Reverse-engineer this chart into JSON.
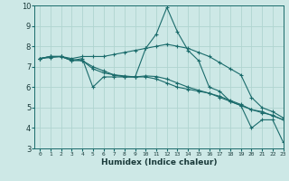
{
  "xlabel": "Humidex (Indice chaleur)",
  "ylabel": "",
  "background_color": "#cde8e6",
  "grid_color": "#b0d4d0",
  "line_color": "#1a6b6b",
  "xlim": [
    -0.5,
    23
  ],
  "ylim": [
    3,
    10
  ],
  "xticks": [
    0,
    1,
    2,
    3,
    4,
    5,
    6,
    7,
    8,
    9,
    10,
    11,
    12,
    13,
    14,
    15,
    16,
    17,
    18,
    19,
    20,
    21,
    22,
    23
  ],
  "yticks": [
    3,
    4,
    5,
    6,
    7,
    8,
    9,
    10
  ],
  "series": [
    [
      7.4,
      7.5,
      7.5,
      7.3,
      7.4,
      6.0,
      6.5,
      6.5,
      6.5,
      6.5,
      7.9,
      8.6,
      9.9,
      8.7,
      7.8,
      7.3,
      6.0,
      5.8,
      5.3,
      5.1,
      4.0,
      4.4,
      4.4,
      3.3
    ],
    [
      7.4,
      7.5,
      7.5,
      7.3,
      7.3,
      7.0,
      6.8,
      6.6,
      6.5,
      6.5,
      6.5,
      6.4,
      6.2,
      6.0,
      5.9,
      5.8,
      5.7,
      5.5,
      5.3,
      5.1,
      4.9,
      4.8,
      4.6,
      4.4
    ],
    [
      7.4,
      7.45,
      7.49,
      7.35,
      7.3,
      6.9,
      6.7,
      6.6,
      6.55,
      6.5,
      6.55,
      6.52,
      6.4,
      6.2,
      6.0,
      5.85,
      5.7,
      5.55,
      5.35,
      5.15,
      4.9,
      4.75,
      4.62,
      4.4
    ],
    [
      7.4,
      7.5,
      7.5,
      7.4,
      7.5,
      7.5,
      7.5,
      7.6,
      7.7,
      7.8,
      7.9,
      8.0,
      8.1,
      8.0,
      7.9,
      7.7,
      7.5,
      7.2,
      6.9,
      6.6,
      5.5,
      5.0,
      4.8,
      4.5
    ]
  ]
}
